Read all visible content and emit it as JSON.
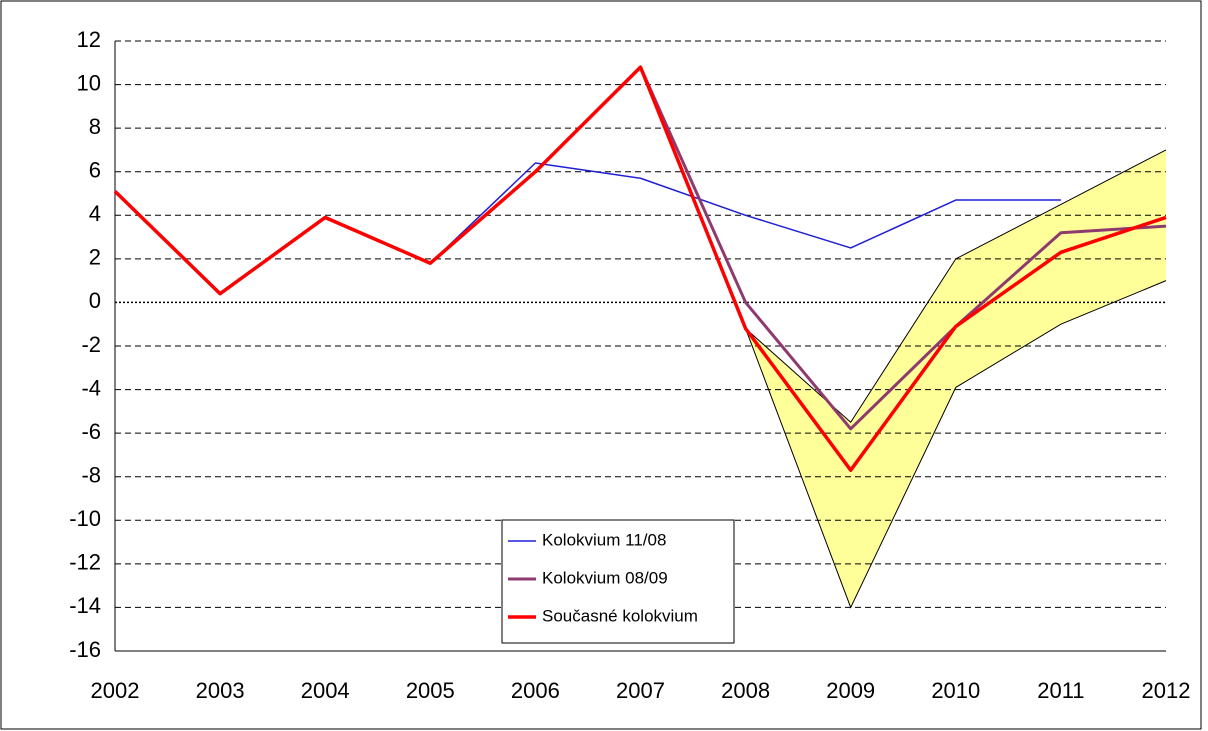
{
  "chart_data": {
    "type": "line",
    "categories": [
      "2002",
      "2003",
      "2004",
      "2005",
      "2006",
      "2007",
      "2008",
      "2009",
      "2010",
      "2011",
      "2012"
    ],
    "series": [
      {
        "name": "Kolokvium 11/08",
        "color": "#1f1fd6",
        "width": 1.5,
        "values": [
          5.1,
          0.4,
          3.9,
          1.8,
          6.4,
          5.7,
          4.0,
          2.5,
          4.7,
          4.7,
          null
        ]
      },
      {
        "name": "Kolokvium 08/09",
        "color": "#8e3a6e",
        "width": 3,
        "values": [
          5.1,
          0.4,
          3.9,
          1.8,
          6.0,
          10.8,
          0.0,
          -5.8,
          -1.1,
          3.2,
          3.5
        ]
      },
      {
        "name": "Současné kolokvium",
        "color": "#ff0000",
        "width": 3.5,
        "values": [
          5.1,
          0.4,
          3.9,
          1.8,
          6.0,
          10.8,
          -1.2,
          -7.7,
          -1.1,
          2.3,
          3.9
        ]
      }
    ],
    "band": {
      "color": "#ffff99",
      "upper": [
        null,
        null,
        null,
        null,
        null,
        null,
        -1.2,
        -5.5,
        2.0,
        4.5,
        7.0
      ],
      "lower": [
        null,
        null,
        null,
        null,
        null,
        null,
        -1.2,
        -14.0,
        -3.9,
        -1.0,
        1.0
      ]
    },
    "ylim": [
      -16,
      12
    ],
    "yticks": [
      -16,
      -14,
      -12,
      -10,
      -8,
      -6,
      -4,
      -2,
      0,
      2,
      4,
      6,
      8,
      10,
      12
    ],
    "grid": true
  }
}
